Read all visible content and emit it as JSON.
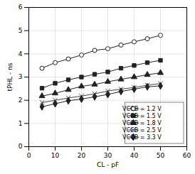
{
  "chart_data": {
    "type": "line",
    "xlabel": "CL - pF",
    "ylabel": "tPHL - ns",
    "xlim": [
      0,
      60
    ],
    "ylim": [
      0,
      6
    ],
    "xticks": [
      0,
      10,
      20,
      30,
      40,
      50,
      60
    ],
    "yticks": [
      0,
      1,
      2,
      3,
      4,
      5,
      6
    ],
    "x": [
      5,
      10,
      15,
      20,
      25,
      30,
      35,
      40,
      45,
      50
    ],
    "series": [
      {
        "name": "VCCB = 1.2 V",
        "color": "#222222",
        "marker": "open_circle",
        "values": [
          3.38,
          3.62,
          3.78,
          3.95,
          4.15,
          4.22,
          4.38,
          4.52,
          4.65,
          4.8
        ]
      },
      {
        "name": "VCCB = 1.5 V",
        "color": "#222222",
        "marker": "square",
        "values": [
          2.52,
          2.73,
          2.88,
          3.0,
          3.12,
          3.22,
          3.38,
          3.5,
          3.62,
          3.72
        ]
      },
      {
        "name": "VCCB = 1.8 V",
        "color": "#222222",
        "marker": "triangle",
        "values": [
          2.18,
          2.3,
          2.45,
          2.6,
          2.68,
          2.8,
          2.9,
          3.0,
          3.1,
          3.18
        ]
      },
      {
        "name": "VCCB = 2.5 V",
        "color": "#444444",
        "marker": "x",
        "values": [
          1.9,
          2.0,
          2.1,
          2.18,
          2.28,
          2.4,
          2.48,
          2.55,
          2.65,
          2.72
        ]
      },
      {
        "name": "VCCB = 3.3 V",
        "color": "#222222",
        "marker": "diamond",
        "values": [
          1.72,
          1.85,
          1.98,
          2.05,
          2.15,
          2.25,
          2.38,
          2.48,
          2.58,
          2.62
        ]
      }
    ],
    "legend": "lower right",
    "grid": true
  }
}
